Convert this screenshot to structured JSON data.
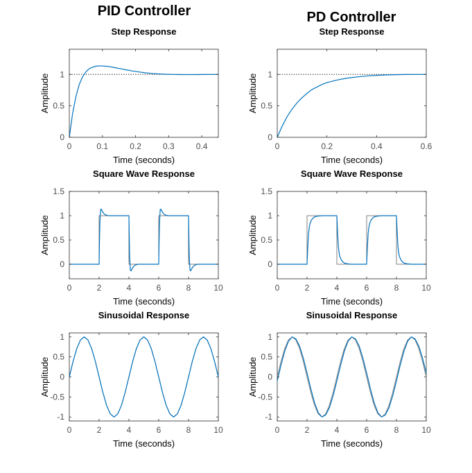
{
  "figure": {
    "left_title": "PID Controller",
    "right_title": "PD Controller"
  },
  "colors": {
    "response": "#0072bd",
    "input": "#808080",
    "axis": "#262626",
    "tick_label": "#4d4d4d",
    "reference": "#000000"
  },
  "chart_data": [
    {
      "panel": "pid-step",
      "type": "line",
      "title": "Step Response",
      "xlabel": "Time (seconds)",
      "ylabel": "Amplitude",
      "xlim": [
        0,
        0.45
      ],
      "ylim": [
        0,
        1.4
      ],
      "xticks": [
        0,
        0.1,
        0.2,
        0.3,
        0.4
      ],
      "xtick_labels": [
        "0",
        "0.1",
        "0.2",
        "0.3",
        "0.4"
      ],
      "yticks": [
        0,
        0.5,
        1
      ],
      "ytick_labels": [
        "0",
        "0.5",
        "1"
      ],
      "reference_line": 1,
      "grid": false,
      "legend": "none",
      "series": [
        {
          "x": [
            0,
            0.01,
            0.02,
            0.03,
            0.04,
            0.05,
            0.06,
            0.07,
            0.08,
            0.09,
            0.1,
            0.11,
            0.12,
            0.13,
            0.14,
            0.15,
            0.17,
            0.19,
            0.21,
            0.23,
            0.25,
            0.27,
            0.29,
            0.31,
            0.33,
            0.35,
            0.37,
            0.39,
            0.41,
            0.43,
            0.45
          ],
          "y": [
            0,
            0.38,
            0.65,
            0.84,
            0.96,
            1.04,
            1.09,
            1.115,
            1.13,
            1.135,
            1.135,
            1.13,
            1.125,
            1.115,
            1.105,
            1.095,
            1.075,
            1.055,
            1.04,
            1.025,
            1.015,
            1.008,
            1.003,
            1.0,
            0.998,
            0.997,
            0.997,
            0.998,
            0.999,
            1.0,
            1.0
          ]
        }
      ]
    },
    {
      "panel": "pd-step",
      "type": "line",
      "title": "Step Response",
      "xlabel": "Time (seconds)",
      "ylabel": "Amplitude",
      "xlim": [
        0,
        0.6
      ],
      "ylim": [
        0,
        1.4
      ],
      "xticks": [
        0,
        0.2,
        0.4,
        0.6
      ],
      "xtick_labels": [
        "0",
        "0.2",
        "0.4",
        "0.6"
      ],
      "yticks": [
        0,
        0.5,
        1
      ],
      "ytick_labels": [
        "0",
        "0.5",
        "1"
      ],
      "reference_line": 1,
      "grid": false,
      "legend": "none",
      "series": [
        {
          "x": [
            0,
            0.02,
            0.04,
            0.06,
            0.08,
            0.1,
            0.12,
            0.14,
            0.16,
            0.18,
            0.2,
            0.24,
            0.28,
            0.32,
            0.36,
            0.4,
            0.44,
            0.48,
            0.52,
            0.56,
            0.6
          ],
          "y": [
            0,
            0.18,
            0.33,
            0.45,
            0.55,
            0.63,
            0.7,
            0.76,
            0.8,
            0.84,
            0.87,
            0.91,
            0.94,
            0.96,
            0.975,
            0.985,
            0.992,
            0.996,
            0.999,
            1.0,
            1.0
          ]
        }
      ]
    },
    {
      "panel": "pid-square",
      "type": "line",
      "title": "Square Wave Response",
      "xlabel": "Time (seconds)",
      "ylabel": "Amplitude",
      "xlim": [
        0,
        10
      ],
      "ylim": [
        -0.3,
        1.5
      ],
      "xticks": [
        0,
        2,
        4,
        6,
        8,
        10
      ],
      "xtick_labels": [
        "0",
        "2",
        "4",
        "6",
        "8",
        "10"
      ],
      "yticks": [
        0,
        0.5,
        1,
        1.5
      ],
      "ytick_labels": [
        "0",
        "0.5",
        "1",
        "1.5"
      ],
      "grid": false,
      "legend": "none",
      "series": [
        {
          "role": "input",
          "x": [
            0,
            2,
            2,
            4,
            4,
            6,
            6,
            8,
            8,
            10
          ],
          "y": [
            0,
            0,
            1,
            1,
            0,
            0,
            1,
            1,
            0,
            0
          ]
        },
        {
          "role": "response",
          "x": [
            0,
            2,
            2.02,
            2.05,
            2.1,
            2.15,
            2.2,
            2.3,
            2.4,
            2.6,
            2.8,
            3.0,
            4,
            4.02,
            4.05,
            4.1,
            4.15,
            4.2,
            4.3,
            4.4,
            4.6,
            4.8,
            5.0,
            6,
            6.02,
            6.05,
            6.1,
            6.15,
            6.2,
            6.3,
            6.4,
            6.6,
            6.8,
            7.0,
            8,
            8.02,
            8.05,
            8.1,
            8.15,
            8.2,
            8.3,
            8.4,
            8.6,
            8.8,
            9.0,
            10
          ],
          "y": [
            0,
            0,
            0.38,
            0.84,
            1.13,
            1.135,
            1.1,
            1.05,
            1.02,
            1.0,
            1.0,
            1.0,
            1.0,
            0.62,
            0.16,
            -0.13,
            -0.135,
            -0.1,
            -0.05,
            -0.02,
            0,
            0,
            0,
            0,
            0.38,
            0.84,
            1.13,
            1.135,
            1.1,
            1.05,
            1.02,
            1.0,
            1.0,
            1.0,
            1.0,
            0.62,
            0.16,
            -0.13,
            -0.135,
            -0.1,
            -0.05,
            -0.02,
            0,
            0,
            0,
            0
          ]
        }
      ]
    },
    {
      "panel": "pd-square",
      "type": "line",
      "title": "Square Wave Response",
      "xlabel": "Time (seconds)",
      "ylabel": "Amplitude",
      "xlim": [
        0,
        10
      ],
      "ylim": [
        -0.3,
        1.5
      ],
      "xticks": [
        0,
        2,
        4,
        6,
        8,
        10
      ],
      "xtick_labels": [
        "0",
        "2",
        "4",
        "6",
        "8",
        "10"
      ],
      "yticks": [
        0,
        0.5,
        1,
        1.5
      ],
      "ytick_labels": [
        "0",
        "0.5",
        "1",
        "1.5"
      ],
      "grid": false,
      "legend": "none",
      "series": [
        {
          "role": "input",
          "x": [
            0,
            2,
            2,
            4,
            4,
            6,
            6,
            8,
            8,
            10
          ],
          "y": [
            0,
            0,
            1,
            1,
            0,
            0,
            1,
            1,
            0,
            0
          ]
        },
        {
          "role": "response",
          "x": [
            0,
            2,
            2.05,
            2.1,
            2.15,
            2.2,
            2.3,
            2.4,
            2.5,
            2.7,
            3.0,
            3.4,
            4,
            4.05,
            4.1,
            4.15,
            4.2,
            4.3,
            4.4,
            4.5,
            4.7,
            5.0,
            5.4,
            6,
            6.05,
            6.1,
            6.15,
            6.2,
            6.3,
            6.4,
            6.5,
            6.7,
            7.0,
            7.4,
            8,
            8.05,
            8.1,
            8.15,
            8.2,
            8.3,
            8.4,
            8.5,
            8.7,
            9.0,
            9.4,
            10
          ],
          "y": [
            0,
            0,
            0.35,
            0.63,
            0.76,
            0.84,
            0.91,
            0.95,
            0.975,
            0.99,
            1.0,
            1.0,
            1.0,
            0.65,
            0.37,
            0.24,
            0.16,
            0.09,
            0.05,
            0.025,
            0.01,
            0,
            0,
            0,
            0.35,
            0.63,
            0.76,
            0.84,
            0.91,
            0.95,
            0.975,
            0.99,
            1.0,
            1.0,
            1.0,
            0.65,
            0.37,
            0.24,
            0.16,
            0.09,
            0.05,
            0.025,
            0.01,
            0,
            0,
            0
          ]
        }
      ]
    },
    {
      "panel": "pid-sine",
      "type": "line",
      "title": "Sinusoidal Response",
      "xlabel": "Time (seconds)",
      "ylabel": "Amplitude",
      "xlim": [
        0,
        10
      ],
      "ylim": [
        -1.1,
        1.1
      ],
      "xticks": [
        0,
        2,
        4,
        6,
        8,
        10
      ],
      "xtick_labels": [
        "0",
        "2",
        "4",
        "6",
        "8",
        "10"
      ],
      "yticks": [
        -1,
        -0.5,
        0,
        0.5,
        1
      ],
      "ytick_labels": [
        "-1",
        "-0.5",
        "0",
        "0.5",
        "1"
      ],
      "grid": false,
      "legend": "none",
      "series": [
        {
          "role": "input",
          "x": [
            0,
            0.25,
            0.5,
            0.75,
            1,
            1.25,
            1.5,
            1.75,
            2,
            2.25,
            2.5,
            2.75,
            3,
            3.25,
            3.5,
            3.75,
            4,
            4.25,
            4.5,
            4.75,
            5,
            5.25,
            5.5,
            5.75,
            6,
            6.25,
            6.5,
            6.75,
            7,
            7.25,
            7.5,
            7.75,
            8,
            8.25,
            8.5,
            8.75,
            9,
            9.25,
            9.5,
            9.75,
            10
          ],
          "y": [
            0,
            0.383,
            0.707,
            0.924,
            1,
            0.924,
            0.707,
            0.383,
            0,
            -0.383,
            -0.707,
            -0.924,
            -1,
            -0.924,
            -0.707,
            -0.383,
            0,
            0.383,
            0.707,
            0.924,
            1,
            0.924,
            0.707,
            0.383,
            0,
            -0.383,
            -0.707,
            -0.924,
            -1,
            -0.924,
            -0.707,
            -0.383,
            0,
            0.383,
            0.707,
            0.924,
            1,
            0.924,
            0.707,
            0.383,
            0
          ]
        },
        {
          "role": "response",
          "x": [
            0,
            0.25,
            0.5,
            0.75,
            1,
            1.25,
            1.5,
            1.75,
            2,
            2.25,
            2.5,
            2.75,
            3,
            3.25,
            3.5,
            3.75,
            4,
            4.25,
            4.5,
            4.75,
            5,
            5.25,
            5.5,
            5.75,
            6,
            6.25,
            6.5,
            6.75,
            7,
            7.25,
            7.5,
            7.75,
            8,
            8.25,
            8.5,
            8.75,
            9,
            9.25,
            9.5,
            9.75,
            10
          ],
          "y": [
            0,
            0.383,
            0.707,
            0.924,
            1,
            0.924,
            0.707,
            0.383,
            0,
            -0.383,
            -0.707,
            -0.924,
            -1,
            -0.924,
            -0.707,
            -0.383,
            0,
            0.383,
            0.707,
            0.924,
            1,
            0.924,
            0.707,
            0.383,
            0,
            -0.383,
            -0.707,
            -0.924,
            -1,
            -0.924,
            -0.707,
            -0.383,
            0,
            0.383,
            0.707,
            0.924,
            1,
            0.924,
            0.707,
            0.383,
            0
          ]
        }
      ]
    },
    {
      "panel": "pd-sine",
      "type": "line",
      "title": "Sinusoidal Response",
      "xlabel": "Time (seconds)",
      "ylabel": "Amplitude",
      "xlim": [
        0,
        10
      ],
      "ylim": [
        -1.1,
        1.1
      ],
      "xticks": [
        0,
        2,
        4,
        6,
        8,
        10
      ],
      "xtick_labels": [
        "0",
        "2",
        "4",
        "6",
        "8",
        "10"
      ],
      "yticks": [
        -1,
        -0.5,
        0,
        0.5,
        1
      ],
      "ytick_labels": [
        "-1",
        "-0.5",
        "0",
        "0.5",
        "1"
      ],
      "grid": false,
      "legend": "none",
      "series": [
        {
          "role": "input",
          "x": [
            0,
            0.25,
            0.5,
            0.75,
            1,
            1.25,
            1.5,
            1.75,
            2,
            2.25,
            2.5,
            2.75,
            3,
            3.25,
            3.5,
            3.75,
            4,
            4.25,
            4.5,
            4.75,
            5,
            5.25,
            5.5,
            5.75,
            6,
            6.25,
            6.5,
            6.75,
            7,
            7.25,
            7.5,
            7.75,
            8,
            8.25,
            8.5,
            8.75,
            9,
            9.25,
            9.5,
            9.75,
            10
          ],
          "y": [
            0,
            0.383,
            0.707,
            0.924,
            1,
            0.924,
            0.707,
            0.383,
            0,
            -0.383,
            -0.707,
            -0.924,
            -1,
            -0.924,
            -0.707,
            -0.383,
            0,
            0.383,
            0.707,
            0.924,
            1,
            0.924,
            0.707,
            0.383,
            0,
            -0.383,
            -0.707,
            -0.924,
            -1,
            -0.924,
            -0.707,
            -0.383,
            0,
            0.383,
            0.707,
            0.924,
            1,
            0.924,
            0.707,
            0.383,
            0
          ]
        },
        {
          "role": "response",
          "x": [
            0,
            0.25,
            0.5,
            0.75,
            1,
            1.25,
            1.5,
            1.75,
            2,
            2.25,
            2.5,
            2.75,
            3,
            3.25,
            3.5,
            3.75,
            4,
            4.25,
            4.5,
            4.75,
            5,
            5.25,
            5.5,
            5.75,
            6,
            6.25,
            6.5,
            6.75,
            7,
            7.25,
            7.5,
            7.75,
            8,
            8.25,
            8.5,
            8.75,
            9,
            9.25,
            9.5,
            9.75,
            10
          ],
          "y": [
            -0.1,
            0.29,
            0.64,
            0.89,
            1,
            0.95,
            0.77,
            0.47,
            0.1,
            -0.29,
            -0.64,
            -0.89,
            -1,
            -0.95,
            -0.77,
            -0.47,
            -0.1,
            0.29,
            0.64,
            0.89,
            1,
            0.95,
            0.77,
            0.47,
            0.1,
            -0.29,
            -0.64,
            -0.89,
            -1,
            -0.95,
            -0.77,
            -0.47,
            -0.1,
            0.29,
            0.64,
            0.89,
            1,
            0.95,
            0.77,
            0.47,
            0.1
          ]
        }
      ]
    }
  ]
}
